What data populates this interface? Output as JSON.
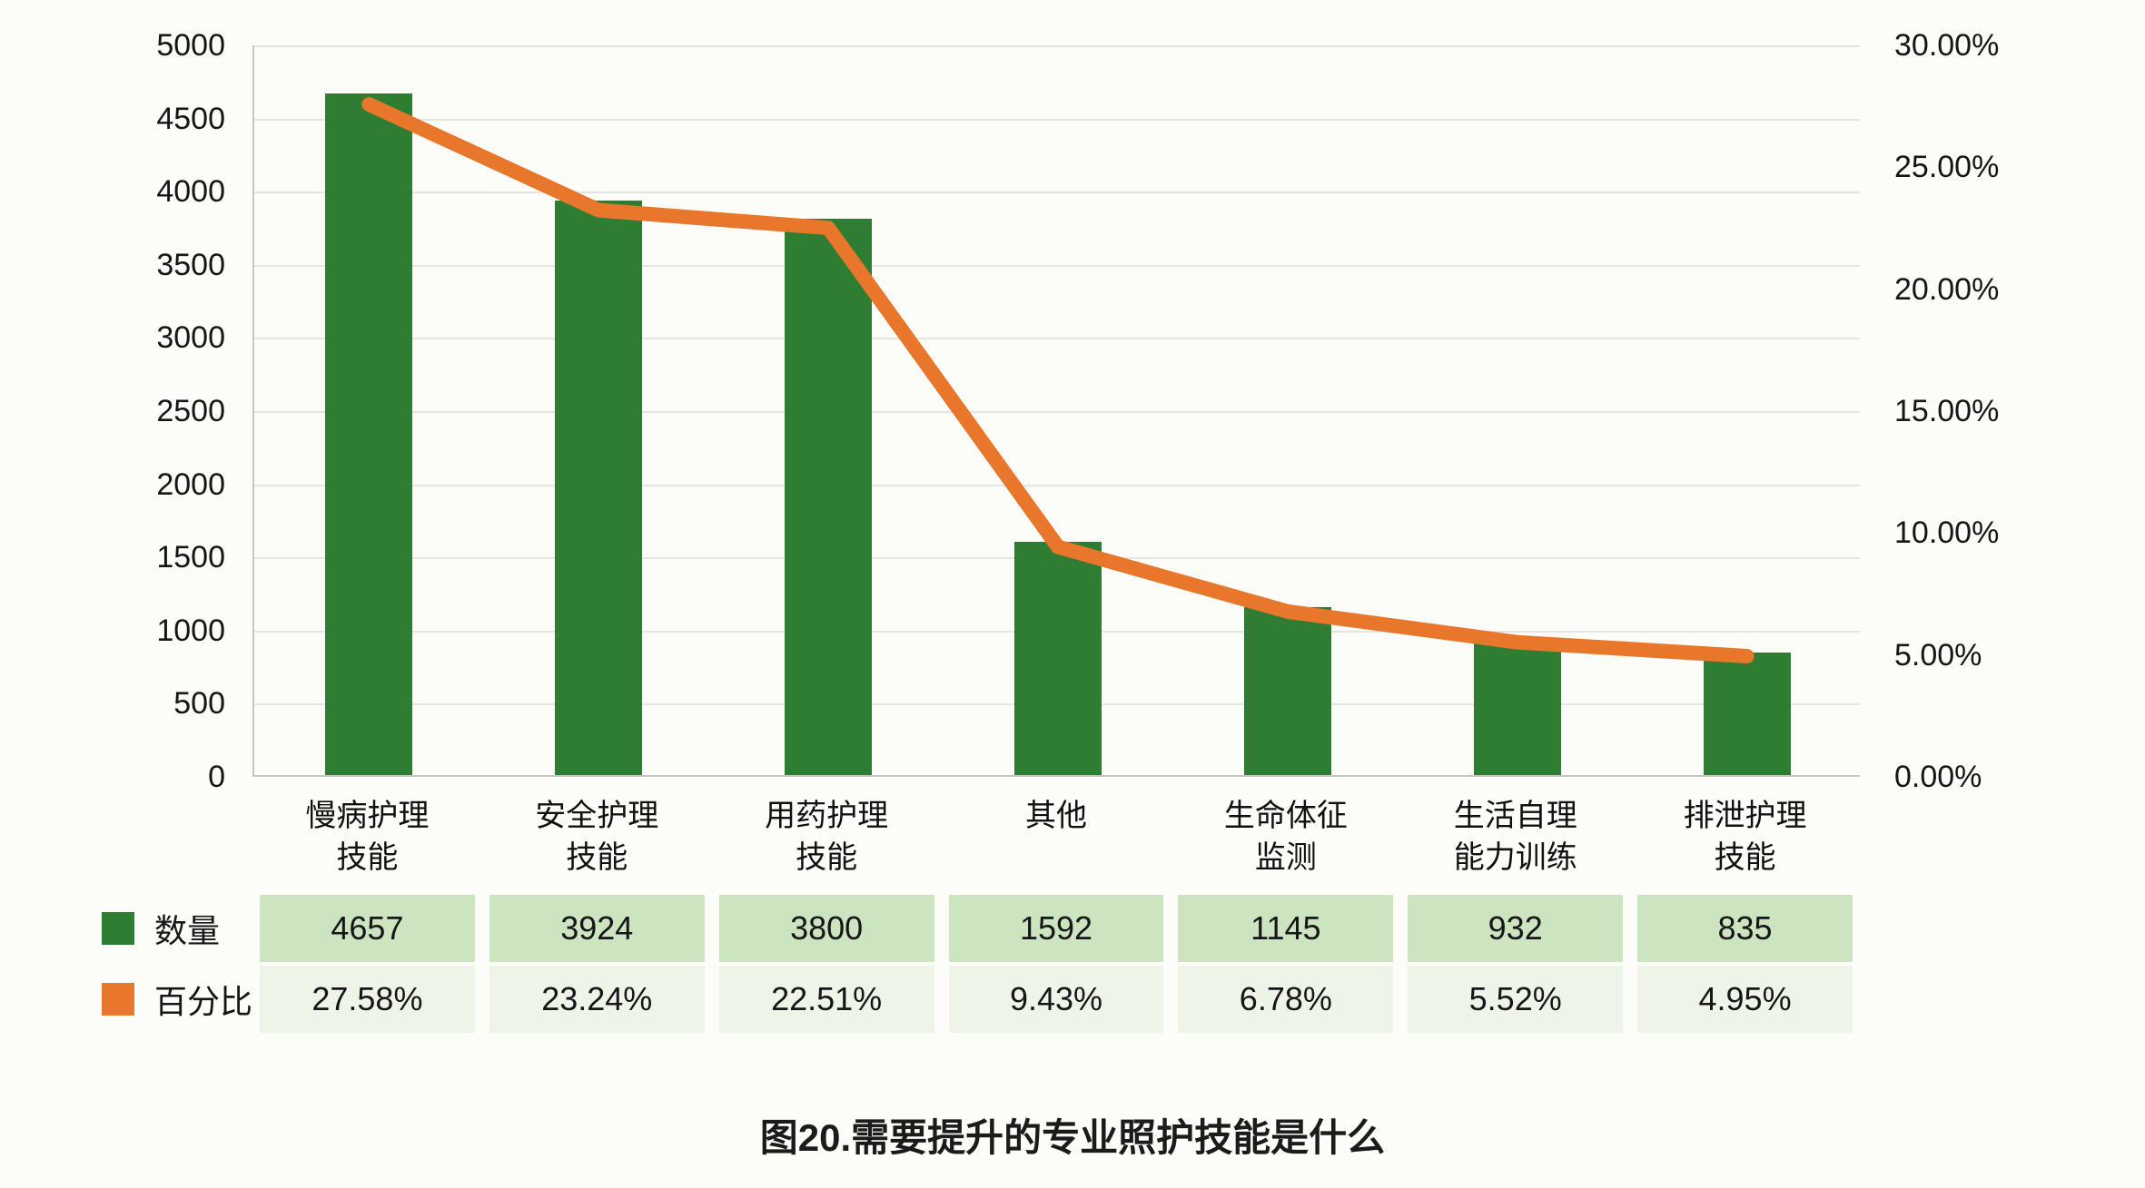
{
  "title": "图20.需要提升的专业照护技能是什么",
  "colors": {
    "bar_green": "#2e7d33",
    "line_orange": "#e8762b",
    "grid": "#e5e5e5",
    "axis": "#c6c6c6",
    "background": "#fcfcf9",
    "table_row1_bg": "#cde4c1",
    "table_row2_bg": "#eef5e8"
  },
  "chart_data": {
    "type": "bar",
    "subtype": "bar+line combo",
    "title": "图20.需要提升的专业照护技能是什么",
    "grid": true,
    "legend_position": "table-left",
    "categories": [
      "慢病护理技能",
      "安全护理技能",
      "用药护理技能",
      "其他",
      "生命体征监测",
      "生活自理能力训练",
      "排泄护理技能"
    ],
    "category_label_lines": [
      [
        "慢病护理",
        "技能"
      ],
      [
        "安全护理",
        "技能"
      ],
      [
        "用药护理",
        "技能"
      ],
      [
        "其他"
      ],
      [
        "生命体征",
        "监测"
      ],
      [
        "生活自理",
        "能力训练"
      ],
      [
        "排泄护理",
        "技能"
      ]
    ],
    "series": [
      {
        "name": "数量",
        "type": "bar",
        "axis": "left",
        "color": "#2e7d33",
        "values": [
          4657,
          3924,
          3800,
          1592,
          1145,
          932,
          835
        ]
      },
      {
        "name": "百分比",
        "type": "line",
        "axis": "right",
        "color": "#e8762b",
        "values": [
          27.58,
          23.24,
          22.51,
          9.43,
          6.78,
          5.52,
          4.95
        ]
      }
    ],
    "left_axis": {
      "min": 0,
      "max": 5000,
      "step": 500,
      "tick_labels": [
        "5000",
        "4500",
        "4000",
        "3500",
        "3000",
        "2500",
        "2000",
        "1500",
        "1000",
        "500",
        "0"
      ]
    },
    "right_axis": {
      "min": 0,
      "max": 30,
      "step": 5,
      "tick_labels": [
        "30.00%",
        "25.00%",
        "20.00%",
        "15.00%",
        "10.00%",
        "5.00%",
        "0.00%"
      ]
    },
    "table_rows": [
      {
        "label": "数量",
        "swatch_color": "#2e7d33",
        "cell_bg": "#cde4c1",
        "cells": [
          "4657",
          "3924",
          "3800",
          "1592",
          "1145",
          "932",
          "835"
        ]
      },
      {
        "label": "百分比",
        "swatch_color": "#e8762b",
        "cell_bg": "#eef5e8",
        "cells": [
          "27.58%",
          "23.24%",
          "22.51%",
          "9.43%",
          "6.78%",
          "5.52%",
          "4.95%"
        ]
      }
    ]
  }
}
